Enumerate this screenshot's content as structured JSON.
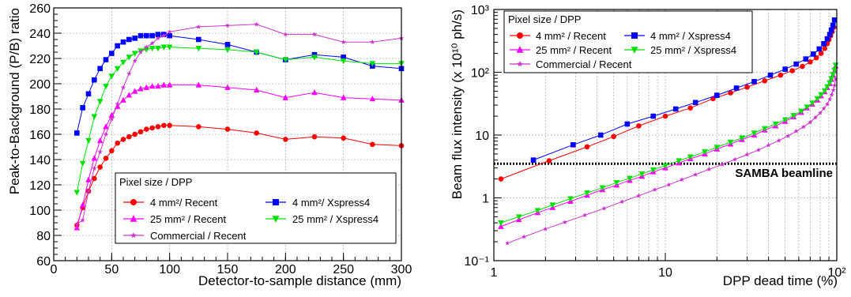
{
  "chart_data": [
    {
      "type": "line",
      "xlabel": "Detector-to-sample distance (mm)",
      "ylabel": "Peak-to-Background (P/B) ratio",
      "xlim": [
        0,
        300
      ],
      "ylim": [
        60,
        260
      ],
      "x_ticks": [
        "0",
        "50",
        "100",
        "150",
        "200",
        "250",
        "300"
      ],
      "y_ticks": [
        "60",
        "80",
        "100",
        "120",
        "140",
        "160",
        "180",
        "200",
        "220",
        "240",
        "260"
      ],
      "grid": true,
      "legend": {
        "title": "Pixel size / DPP",
        "placement": "bottom-center",
        "entries": [
          "4 mm²/ Recent",
          "4 mm²/ Xspress4",
          "25 mm² / Recent",
          "25 mm² / Xspress4",
          "Commercial / Recent"
        ]
      },
      "series": [
        {
          "name": "4 mm²/ Recent",
          "color": "#ff0000",
          "marker": "circle",
          "x": [
            20,
            25,
            30,
            35,
            40,
            45,
            50,
            55,
            60,
            65,
            70,
            75,
            80,
            85,
            90,
            95,
            100,
            125,
            150,
            175,
            200,
            225,
            250,
            275,
            300
          ],
          "y": [
            88,
            102,
            115,
            125,
            134,
            141,
            147,
            153,
            156,
            158,
            160,
            162,
            164,
            165,
            166,
            167,
            167,
            166,
            164,
            161,
            156,
            158,
            157,
            152,
            151
          ]
        },
        {
          "name": "4 mm²/ Xspress4",
          "color": "#0000ff",
          "marker": "square",
          "x": [
            20,
            25,
            30,
            35,
            40,
            45,
            50,
            55,
            60,
            65,
            70,
            75,
            80,
            85,
            90,
            95,
            100,
            125,
            150,
            175,
            200,
            225,
            250,
            275,
            300
          ],
          "y": [
            161,
            181,
            192,
            203,
            212,
            219,
            224,
            230,
            233,
            235,
            236,
            238,
            238,
            238,
            239,
            239,
            238,
            235,
            231,
            225,
            219,
            223,
            221,
            214,
            212
          ]
        },
        {
          "name": "25 mm² / Recent",
          "color": "#ff00ff",
          "marker": "triangle-up",
          "x": [
            20,
            25,
            30,
            35,
            40,
            45,
            50,
            55,
            60,
            65,
            70,
            75,
            80,
            85,
            90,
            95,
            100,
            125,
            150,
            175,
            200,
            225,
            250,
            275,
            300
          ],
          "y": [
            86,
            104,
            124,
            141,
            155,
            166,
            175,
            182,
            187,
            191,
            194,
            196,
            197,
            198,
            198,
            199,
            199,
            199,
            197,
            195,
            189,
            193,
            189,
            188,
            187
          ]
        },
        {
          "name": "25 mm² / Xspress4",
          "color": "#00e000",
          "marker": "triangle-down",
          "x": [
            20,
            25,
            30,
            35,
            40,
            45,
            50,
            55,
            60,
            65,
            70,
            75,
            80,
            85,
            90,
            95,
            100,
            125,
            150,
            175,
            200,
            225,
            250,
            275,
            300
          ],
          "y": [
            114,
            137,
            155,
            174,
            186,
            198,
            206,
            212,
            217,
            221,
            224,
            226,
            227,
            228,
            228,
            229,
            229,
            228,
            227,
            225,
            219,
            221,
            218,
            216,
            216
          ]
        },
        {
          "name": "Commercial / Recent",
          "color": "#cc33cc",
          "marker": "star",
          "x": [
            20,
            25,
            30,
            35,
            40,
            45,
            50,
            55,
            60,
            65,
            70,
            75,
            80,
            85,
            90,
            95,
            100,
            125,
            150,
            175,
            200,
            225,
            250,
            275,
            300
          ],
          "y": [
            89,
            92,
            115,
            133,
            146,
            160,
            172,
            184,
            197,
            208,
            218,
            225,
            229,
            232,
            236,
            238,
            241,
            245,
            246,
            247,
            239,
            239,
            233,
            233,
            236
          ]
        }
      ]
    },
    {
      "type": "line",
      "xlabel": "DPP dead time (%)",
      "ylabel": "Beam flux intensity (x 10¹⁰ ph/s)",
      "x_scale": "log",
      "y_scale": "log",
      "xlim": [
        1,
        100
      ],
      "ylim": [
        0.1,
        1000
      ],
      "x_ticks": [
        "1",
        "10",
        "10²"
      ],
      "y_ticks": [
        "10⁻¹",
        "1",
        "10",
        "10²",
        "10³"
      ],
      "grid": true,
      "legend": {
        "title": "Pixel size / DPP",
        "placement": "top-left",
        "entries": [
          "4 mm² / Recent",
          "4 mm² / Xspress4",
          "25 mm² / Recent",
          "25 mm² / Xspress4",
          "Commercial / Recent"
        ]
      },
      "annotation": {
        "text": "SAMBA beamline",
        "y": 3.5
      },
      "series": [
        {
          "name": "4 mm² / Recent",
          "color": "#ff0000",
          "marker": "circle",
          "x": [
            1.1,
            2.1,
            3.5,
            5.0,
            7.0,
            10.0,
            14.0,
            19.0,
            24.0,
            30.0,
            38.0,
            47.0,
            55.0,
            63.0,
            70.0,
            76.0,
            81.0,
            85.0,
            88.0,
            90.0,
            92.0,
            94.0,
            96.0
          ],
          "y": [
            2.0,
            3.9,
            6.5,
            9.5,
            14,
            20,
            27,
            38,
            47,
            58,
            73,
            90,
            106,
            124,
            146,
            170,
            200,
            240,
            285,
            330,
            380,
            440,
            520
          ]
        },
        {
          "name": "4 mm² / Xspress4",
          "color": "#0000ff",
          "marker": "square",
          "x": [
            1.7,
            2.9,
            4.2,
            6.0,
            8.5,
            11.5,
            15.0,
            20.0,
            26.0,
            33.0,
            41.0,
            50.0,
            58.0,
            66.0,
            73.0,
            79.0,
            84.0,
            88.0,
            91.0,
            93.0,
            95.0,
            97.0
          ],
          "y": [
            4.0,
            7.0,
            10,
            15,
            20,
            26,
            33,
            43,
            56,
            71,
            90,
            112,
            135,
            163,
            195,
            235,
            285,
            340,
            400,
            470,
            560,
            680
          ]
        },
        {
          "name": "25 mm² / Recent",
          "color": "#ff00ff",
          "marker": "triangle-up",
          "x": [
            1.1,
            1.4,
            1.8,
            2.2,
            2.8,
            3.5,
            4.3,
            5.2,
            6.2,
            7.3,
            8.5,
            10.0,
            12.0,
            14.0,
            17.0,
            20.0,
            24.0,
            28.0,
            33.0,
            38.0,
            44.0,
            50.0,
            56.0,
            62.0,
            67.0,
            72.0,
            77.0,
            81.0,
            85.0,
            88.0,
            91.0,
            93.0,
            95.0,
            97.0,
            98.5
          ],
          "y": [
            0.35,
            0.45,
            0.58,
            0.7,
            0.88,
            1.1,
            1.35,
            1.6,
            1.9,
            2.2,
            2.6,
            3.0,
            3.6,
            4.2,
            5.0,
            6.0,
            7.2,
            8.5,
            10,
            12,
            14,
            16.5,
            19.5,
            23,
            27,
            31,
            36,
            42,
            49,
            57,
            66,
            77,
            90,
            105,
            125
          ]
        },
        {
          "name": "25 mm² / Xspress4",
          "color": "#00e000",
          "marker": "triangle-down",
          "x": [
            1.1,
            1.4,
            1.8,
            2.2,
            2.8,
            3.5,
            4.3,
            5.2,
            6.2,
            7.3,
            8.5,
            10.0,
            12.0,
            14.0,
            17.0,
            20.0,
            24.0,
            28.0,
            33.0,
            38.0,
            44.0,
            50.0,
            56.0,
            62.0,
            67.0,
            72.0,
            77.0,
            81.0,
            85.0,
            88.0,
            91.0,
            93.0,
            95.0,
            97.0,
            98.5
          ],
          "y": [
            0.4,
            0.5,
            0.63,
            0.77,
            0.97,
            1.2,
            1.45,
            1.75,
            2.05,
            2.4,
            2.8,
            3.25,
            3.9,
            4.5,
            5.4,
            6.4,
            7.7,
            9.0,
            10.8,
            12.7,
            15,
            17.5,
            20.5,
            24,
            28,
            32.5,
            38,
            44,
            51,
            59,
            68,
            79,
            92,
            108,
            130
          ]
        },
        {
          "name": "Commercial / Recent",
          "color": "#cc33cc",
          "marker": "star",
          "x": [
            1.2,
            1.5,
            2.0,
            2.6,
            3.4,
            4.4,
            5.6,
            7.0,
            8.7,
            10.5,
            12.5,
            15.0,
            18.0,
            21.5,
            25.5,
            30.0,
            35.0,
            40.0,
            46.0,
            52.0,
            58.0,
            64.0,
            70.0,
            75.0,
            80.0,
            84.0,
            88.0,
            91.0,
            93.5,
            95.5,
            97.0,
            98.5
          ],
          "y": [
            0.19,
            0.24,
            0.32,
            0.41,
            0.53,
            0.68,
            0.87,
            1.08,
            1.35,
            1.62,
            1.95,
            2.35,
            2.85,
            3.4,
            4.1,
            4.9,
            5.8,
            6.9,
            8.2,
            9.7,
            11.5,
            13.5,
            16,
            19,
            22.5,
            26.5,
            31,
            37,
            44,
            52,
            62,
            78
          ]
        }
      ]
    }
  ]
}
